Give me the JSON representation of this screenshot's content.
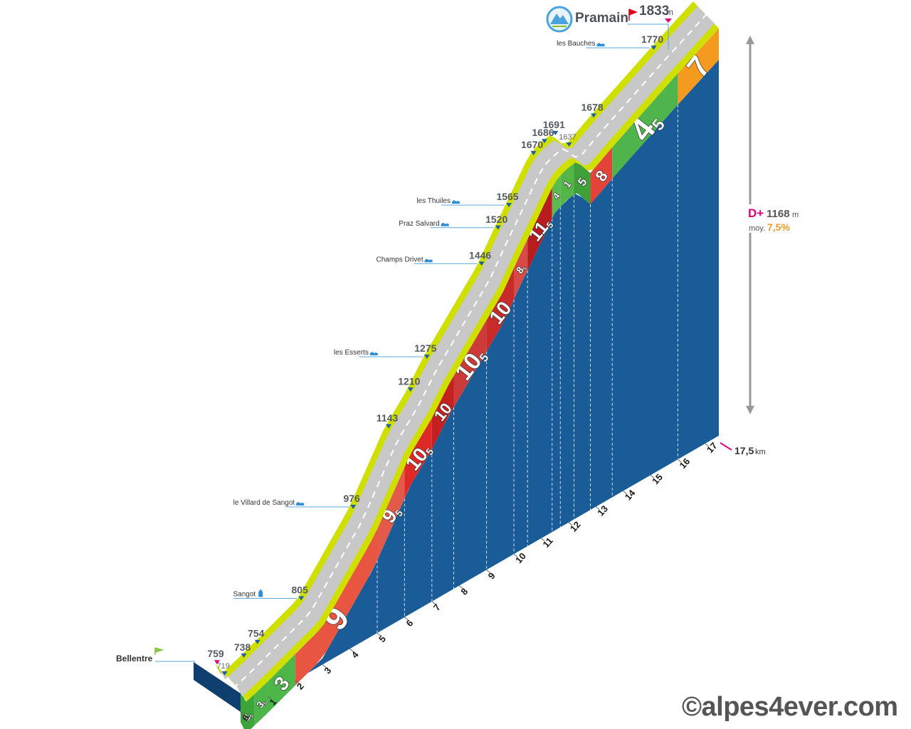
{
  "chart_data": {
    "type": "area",
    "start": {
      "name": "Bellentre",
      "altitude": "759"
    },
    "summit": {
      "name": "Pramain",
      "altitude": "1833",
      "unit": "m"
    },
    "elevation_gain": {
      "label": "D+",
      "value": "1168",
      "unit": "m"
    },
    "average": {
      "label": "moy.",
      "value": "7,5%"
    },
    "distance": {
      "value": "17,5",
      "unit": "km"
    },
    "x_ticks": [
      "0",
      "1",
      "2",
      "3",
      "4",
      "5",
      "6",
      "7",
      "8",
      "9",
      "10",
      "11",
      "12",
      "13",
      "14",
      "15",
      "16",
      "17"
    ],
    "gradients": [
      {
        "from_km": 0.0,
        "to_km": 0.5,
        "major": "2",
        "minor": "5",
        "color": "#3ba43a"
      },
      {
        "from_km": 0.5,
        "to_km": 1.0,
        "major": "3",
        "minor": "5",
        "color": "#4cb648"
      },
      {
        "from_km": 1.0,
        "to_km": 2.0,
        "major": "3",
        "minor": "",
        "color": "#4cb648"
      },
      {
        "from_km": 2.0,
        "to_km": 5.0,
        "major": "9",
        "minor": "",
        "color": "#e85540"
      },
      {
        "from_km": 5.0,
        "to_km": 6.0,
        "major": "9",
        "minor": "5",
        "color": "#e45a4a"
      },
      {
        "from_km": 6.0,
        "to_km": 7.0,
        "major": "10",
        "minor": "5",
        "color": "#dd2a26"
      },
      {
        "from_km": 7.0,
        "to_km": 7.8,
        "major": "10",
        "minor": "",
        "color": "#c3201f"
      },
      {
        "from_km": 7.8,
        "to_km": 9.0,
        "major": "10",
        "minor": "5",
        "color": "#cc3a3a"
      },
      {
        "from_km": 9.0,
        "to_km": 10.0,
        "major": "10",
        "minor": "",
        "color": "#c72c2a"
      },
      {
        "from_km": 10.0,
        "to_km": 10.5,
        "major": "8",
        "minor": "5",
        "color": "#d84a46"
      },
      {
        "from_km": 10.5,
        "to_km": 11.4,
        "major": "11",
        "minor": "5",
        "color": "#b71c1f"
      },
      {
        "from_km": 11.4,
        "to_km": 11.7,
        "major": "4",
        "minor": "",
        "color": "#5cbb50"
      },
      {
        "from_km": 11.7,
        "to_km": 12.2,
        "major": "1",
        "minor": "",
        "color": "#54b548"
      },
      {
        "from_km": 12.2,
        "to_km": 12.8,
        "major": "5",
        "minor": "",
        "color": "#3f9f39"
      },
      {
        "from_km": 12.8,
        "to_km": 13.6,
        "major": "8",
        "minor": "",
        "color": "#e44339"
      },
      {
        "from_km": 13.6,
        "to_km": 16.0,
        "major": "4",
        "minor": "5",
        "color": "#4eb44b"
      },
      {
        "from_km": 16.0,
        "to_km": 17.5,
        "major": "7",
        "minor": "",
        "color": "#f39a1f"
      }
    ],
    "waypoints": [
      {
        "km": 0.0,
        "altitude": "759",
        "place": "Bellentre",
        "marker": "start"
      },
      {
        "km": 0.2,
        "altitude": "719",
        "place": "",
        "small": true
      },
      {
        "km": 0.9,
        "altitude": "738",
        "place": ""
      },
      {
        "km": 1.4,
        "altitude": "754",
        "place": ""
      },
      {
        "km": 3.0,
        "altitude": "805",
        "place": "Sangot",
        "icon": "church-icon"
      },
      {
        "km": 4.9,
        "altitude": "976",
        "place": "le Villard de Sangot",
        "icon": "village-icon"
      },
      {
        "km": 6.2,
        "altitude": "1143",
        "place": ""
      },
      {
        "km": 7.0,
        "altitude": "1210",
        "place": ""
      },
      {
        "km": 7.6,
        "altitude": "1275",
        "place": "les Esserts",
        "icon": "village-icon"
      },
      {
        "km": 9.6,
        "altitude": "1446",
        "place": "Champs Drivet",
        "icon": "village-icon"
      },
      {
        "km": 10.2,
        "altitude": "1520",
        "place": "Praz Salvard",
        "icon": "village-icon"
      },
      {
        "km": 10.6,
        "altitude": "1565",
        "place": "les Thuiles",
        "icon": "village-icon"
      },
      {
        "km": 11.5,
        "altitude": "1670",
        "place": ""
      },
      {
        "km": 11.9,
        "altitude": "1686",
        "place": ""
      },
      {
        "km": 12.3,
        "altitude": "1691",
        "place": ""
      },
      {
        "km": 12.8,
        "altitude": "1637",
        "place": "",
        "small": true
      },
      {
        "km": 13.7,
        "altitude": "1678",
        "place": ""
      },
      {
        "km": 15.9,
        "altitude": "1770",
        "place": "les Bauches",
        "icon": "village-icon"
      },
      {
        "km": 17.5,
        "altitude": "1833",
        "place": "Pramain",
        "marker": "summit"
      }
    ],
    "colors": {
      "wall": "#1a5c98",
      "wall_dark": "#0f3f6e",
      "road": "#c8c8c8",
      "edge": "#cfe000",
      "tick": "#1f5fa8",
      "accent": "#e0007a",
      "avg": "#f39a1f"
    }
  },
  "credit": "©alpes4ever.com"
}
